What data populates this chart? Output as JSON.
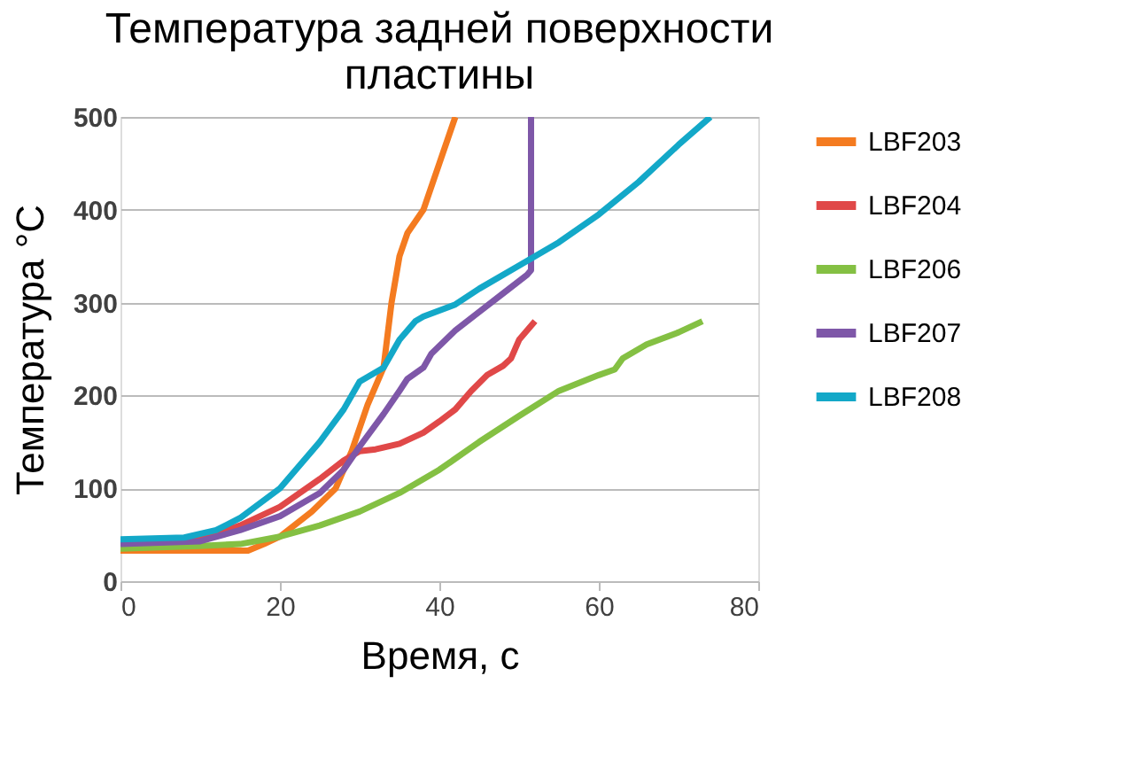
{
  "chart_data": {
    "type": "line",
    "title": "Температура  задней поверхности пластины",
    "xlabel": "Время, с",
    "ylabel": "Температура  °C",
    "xlim": [
      0,
      80
    ],
    "xticks": [
      0,
      20,
      40,
      60,
      80
    ],
    "ylim": [
      0,
      500
    ],
    "yticks": [
      0,
      100,
      200,
      300,
      400,
      500
    ],
    "grid": "y",
    "legend": "right",
    "marker": "none",
    "line_style": "solid",
    "series": [
      {
        "name": "LBF203",
        "color": "#f47b20",
        "x": [
          0,
          10,
          16,
          18,
          20,
          24,
          27,
          29,
          31,
          32,
          33,
          34,
          35,
          36,
          38,
          40,
          42
        ],
        "values": [
          33,
          33,
          33,
          40,
          48,
          75,
          100,
          140,
          190,
          210,
          230,
          300,
          350,
          375,
          400,
          450,
          500
        ]
      },
      {
        "name": "LBF204",
        "color": "#e04848",
        "x": [
          0,
          10,
          15,
          20,
          25,
          28,
          30,
          32,
          35,
          38,
          40,
          42,
          44,
          46,
          48,
          49,
          50,
          52
        ],
        "values": [
          38,
          45,
          60,
          80,
          110,
          130,
          140,
          142,
          148,
          160,
          172,
          185,
          205,
          222,
          232,
          240,
          260,
          280
        ]
      },
      {
        "name": "LBF206",
        "color": "#84c043",
        "x": [
          0,
          10,
          15,
          20,
          25,
          30,
          35,
          40,
          45,
          50,
          55,
          60,
          62,
          63,
          66,
          70,
          73
        ],
        "values": [
          35,
          38,
          40,
          48,
          60,
          75,
          95,
          120,
          150,
          178,
          205,
          222,
          228,
          240,
          255,
          268,
          280
        ]
      },
      {
        "name": "LBF207",
        "color": "#7e57a8",
        "x": [
          0,
          10,
          15,
          20,
          25,
          28,
          30,
          33,
          35,
          36,
          38,
          39,
          42,
          45,
          48,
          51,
          51.5,
          51.5
        ],
        "values": [
          40,
          43,
          55,
          70,
          95,
          120,
          145,
          180,
          205,
          218,
          230,
          245,
          270,
          290,
          310,
          330,
          335,
          500
        ]
      },
      {
        "name": "LBF208",
        "color": "#13a8c8",
        "x": [
          0,
          8,
          12,
          15,
          20,
          25,
          28,
          30,
          32,
          33,
          35,
          37,
          38,
          42,
          45,
          50,
          55,
          60,
          65,
          70,
          74
        ],
        "values": [
          45,
          47,
          55,
          68,
          100,
          150,
          185,
          215,
          225,
          230,
          260,
          280,
          285,
          298,
          315,
          340,
          365,
          395,
          430,
          470,
          500
        ]
      }
    ]
  }
}
